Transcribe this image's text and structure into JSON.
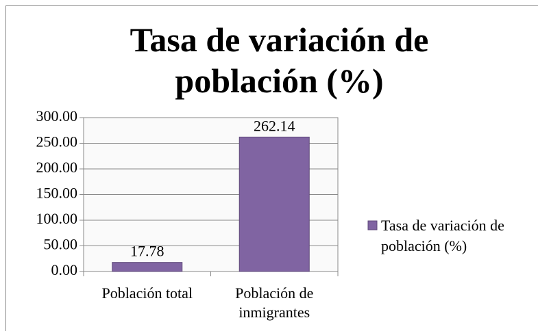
{
  "chart_data": {
    "type": "bar",
    "title": "Tasa de variación de población (%)",
    "categories": [
      "Población total",
      "Población de inmigrantes"
    ],
    "series": [
      {
        "name": "Tasa de variación de población (%)",
        "color": "#8064a2",
        "values": [
          17.78,
          262.14
        ]
      }
    ],
    "ylim": [
      0,
      300
    ],
    "yticks": [
      {
        "value": 0,
        "label": "0.00"
      },
      {
        "value": 50,
        "label": "50.00"
      },
      {
        "value": 100,
        "label": "100.00"
      },
      {
        "value": 150,
        "label": "150.00"
      },
      {
        "value": 200,
        "label": "200.00"
      },
      {
        "value": 250,
        "label": "250.00"
      },
      {
        "value": 300,
        "label": "300.00"
      }
    ],
    "grid": true,
    "legend": "right"
  }
}
